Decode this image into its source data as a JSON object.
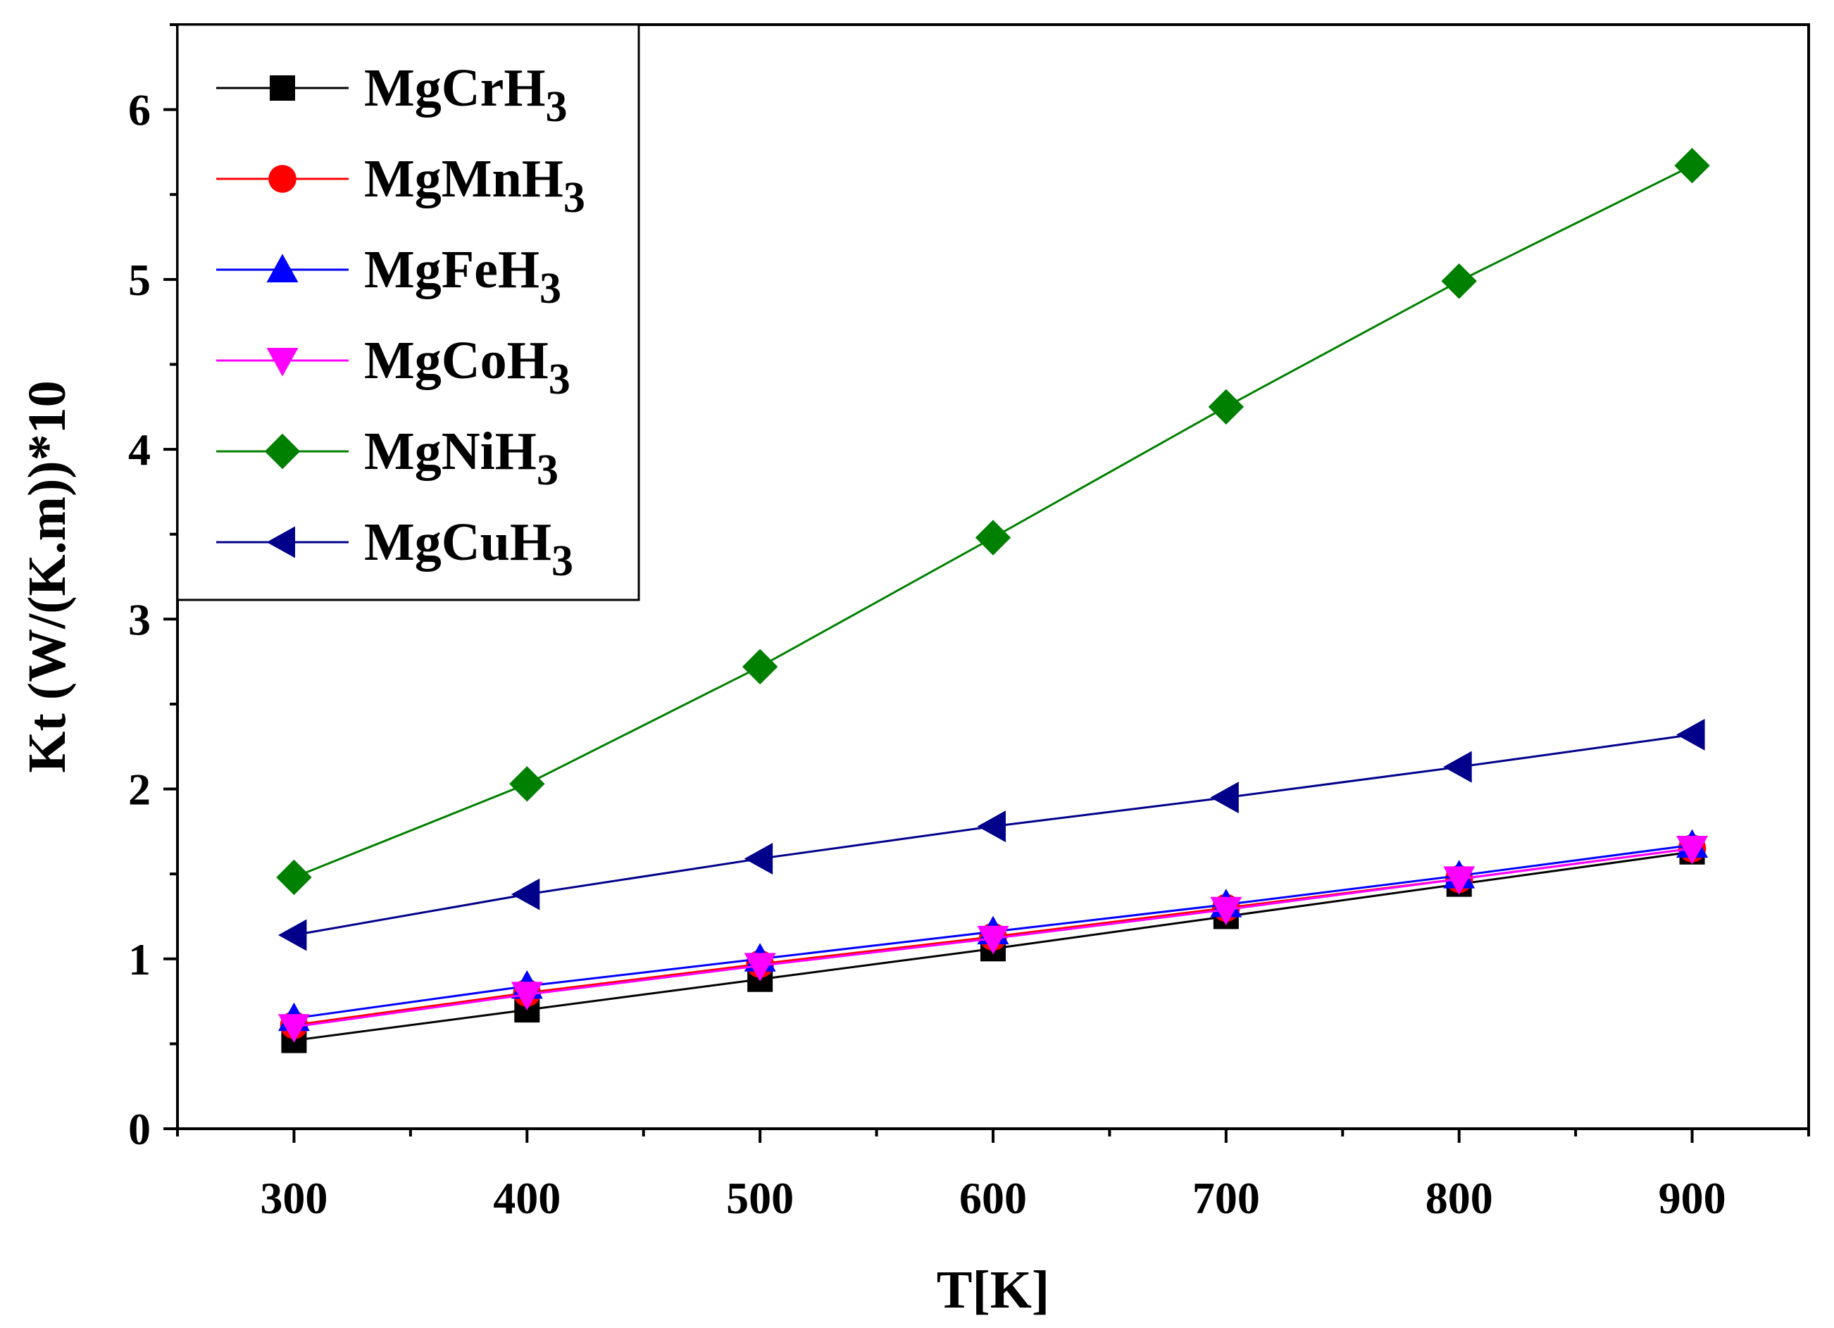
{
  "chart_data": {
    "type": "line",
    "title": "",
    "xlabel": "T[K]",
    "ylabel": "Kt (W/(K.m))*10",
    "xlim": [
      250,
      950
    ],
    "ylim": [
      0,
      6.5
    ],
    "xticks": [
      300,
      400,
      500,
      600,
      700,
      800,
      900
    ],
    "yticks": [
      0,
      1,
      2,
      3,
      4,
      5,
      6
    ],
    "grid": false,
    "legend_position": "top-left",
    "x": [
      300,
      400,
      500,
      600,
      700,
      800,
      900
    ],
    "series": [
      {
        "name": "MgCrH",
        "sub": "3",
        "color": "#000000",
        "marker": "square",
        "values": [
          0.52,
          0.7,
          0.88,
          1.06,
          1.25,
          1.44,
          1.63
        ]
      },
      {
        "name": "MgMnH",
        "sub": "3",
        "color": "#ff0000",
        "marker": "circle",
        "values": [
          0.61,
          0.8,
          0.97,
          1.13,
          1.3,
          1.47,
          1.65
        ]
      },
      {
        "name": "MgFeH",
        "sub": "3",
        "color": "#0000ff",
        "marker": "triangle-up",
        "values": [
          0.65,
          0.84,
          1.0,
          1.16,
          1.32,
          1.49,
          1.67
        ]
      },
      {
        "name": "MgCoH",
        "sub": "3",
        "color": "#ff00ff",
        "marker": "triangle-down",
        "values": [
          0.6,
          0.79,
          0.96,
          1.12,
          1.29,
          1.47,
          1.65
        ]
      },
      {
        "name": "MgNiH",
        "sub": "3",
        "color": "#008000",
        "marker": "diamond",
        "values": [
          1.48,
          2.03,
          2.72,
          3.48,
          4.25,
          4.99,
          5.67
        ]
      },
      {
        "name": "MgCuH",
        "sub": "3",
        "color": "#00008b",
        "marker": "triangle-left",
        "values": [
          1.14,
          1.38,
          1.59,
          1.78,
          1.95,
          2.13,
          2.32
        ]
      }
    ]
  }
}
